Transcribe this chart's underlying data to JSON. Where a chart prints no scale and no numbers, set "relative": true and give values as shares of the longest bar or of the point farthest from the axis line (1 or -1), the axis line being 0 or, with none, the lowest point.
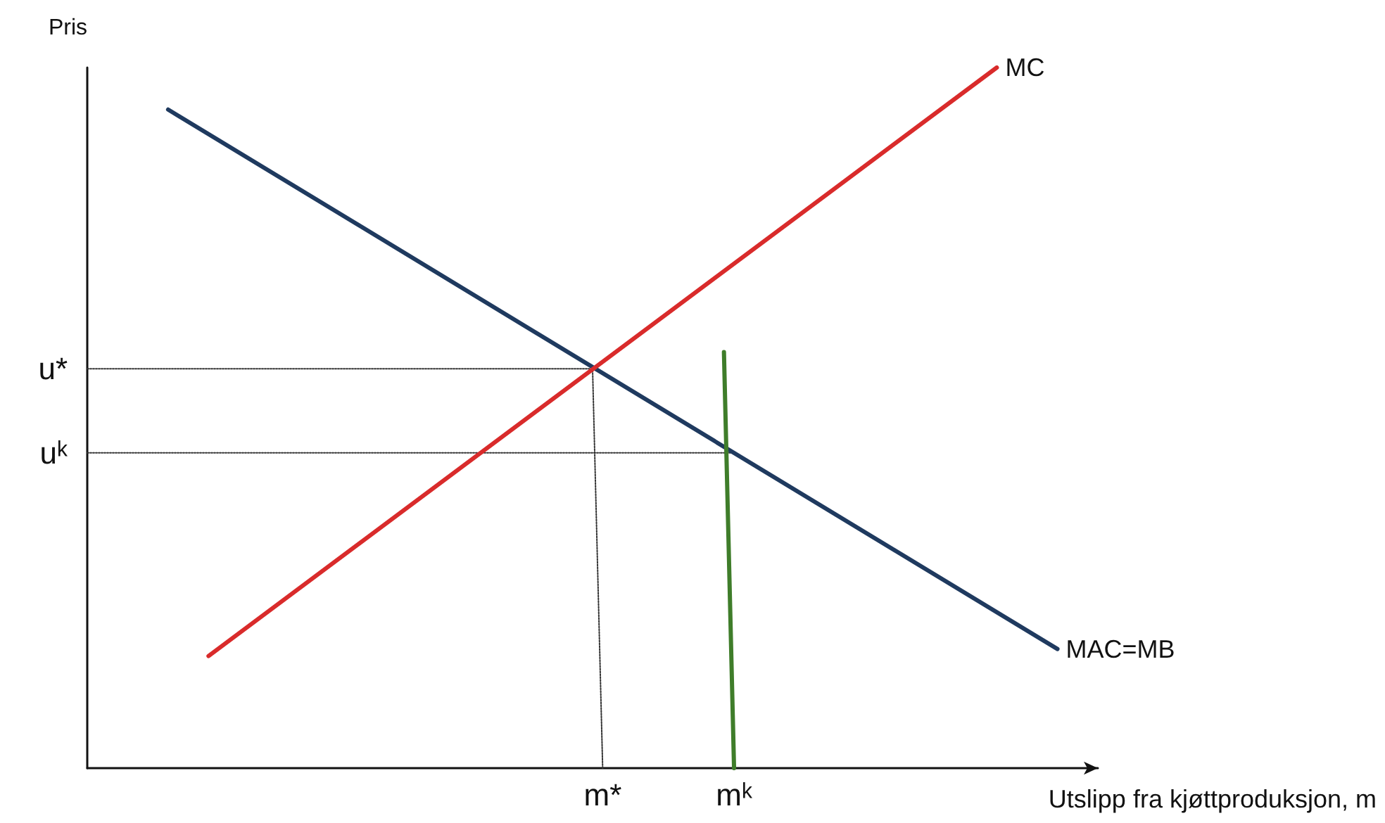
{
  "chart_data": {
    "type": "line",
    "relative": true,
    "xlabel": "Utslipp fra kjøttproduksjon, m",
    "ylabel": "Pris",
    "grid": false,
    "legend": false,
    "marker": "none",
    "categories": [
      null,
      null,
      null,
      null,
      null,
      null,
      null,
      null,
      null,
      null,
      null,
      null,
      null,
      null,
      null,
      null,
      null,
      null,
      null,
      null,
      null,
      null,
      null,
      null,
      null,
      null,
      null,
      null,
      null,
      null,
      null,
      null,
      null,
      null,
      null,
      null,
      null,
      null,
      null,
      null,
      null,
      null,
      null,
      null,
      null,
      null,
      null,
      null,
      null,
      null,
      null,
      "m*",
      null,
      null,
      null,
      null,
      null,
      null,
      null,
      null,
      null,
      null,
      null,
      null,
      "mᵏ",
      null,
      null,
      null,
      null,
      null,
      null,
      null,
      null,
      null,
      null,
      null,
      null,
      null,
      null,
      null,
      null,
      null,
      null,
      null,
      null,
      null,
      null,
      null,
      null,
      null,
      null,
      null,
      null,
      null,
      null,
      null,
      null,
      null,
      null,
      null,
      null
    ],
    "series": [
      {
        "name": "MAC=MB",
        "color": "#1f3a5f",
        "values": [
          null,
          null,
          null,
          null,
          null,
          null,
          null,
          null,
          0.94,
          null,
          null,
          null,
          null,
          null,
          null,
          null,
          null,
          null,
          null,
          null,
          null,
          null,
          null,
          null,
          null,
          null,
          null,
          null,
          null,
          null,
          null,
          null,
          null,
          null,
          null,
          null,
          null,
          null,
          null,
          null,
          null,
          null,
          null,
          null,
          null,
          null,
          null,
          null,
          null,
          null,
          null,
          null,
          null,
          null,
          null,
          null,
          null,
          null,
          null,
          null,
          null,
          null,
          null,
          null,
          null,
          null,
          null,
          null,
          null,
          null,
          null,
          null,
          null,
          null,
          null,
          null,
          null,
          null,
          null,
          null,
          null,
          null,
          null,
          null,
          null,
          null,
          null,
          null,
          null,
          null,
          null,
          null,
          null,
          null,
          null,
          null,
          0.17,
          null,
          null,
          null,
          null
        ]
      },
      {
        "name": "MC",
        "color": "#d92b2b",
        "values": [
          null,
          null,
          null,
          null,
          null,
          null,
          null,
          null,
          null,
          null,
          null,
          null,
          0.16,
          null,
          null,
          null,
          null,
          null,
          null,
          null,
          null,
          null,
          null,
          null,
          null,
          null,
          null,
          null,
          null,
          null,
          null,
          null,
          null,
          null,
          null,
          null,
          null,
          null,
          null,
          null,
          null,
          null,
          null,
          null,
          null,
          null,
          null,
          null,
          null,
          null,
          null,
          null,
          null,
          null,
          null,
          null,
          null,
          null,
          null,
          null,
          null,
          null,
          null,
          null,
          null,
          null,
          null,
          null,
          null,
          null,
          null,
          null,
          null,
          null,
          null,
          null,
          null,
          null,
          null,
          null,
          null,
          null,
          null,
          null,
          null,
          null,
          null,
          null,
          null,
          null,
          1,
          null,
          null,
          null,
          null,
          null,
          null,
          null,
          null,
          null,
          null
        ]
      },
      {
        "color": "#3f7d2a",
        "values": [
          null,
          null,
          null,
          null,
          null,
          null,
          null,
          null,
          null,
          null,
          null,
          null,
          null,
          null,
          null,
          null,
          null,
          null,
          null,
          null,
          null,
          null,
          null,
          null,
          null,
          null,
          null,
          null,
          null,
          null,
          null,
          null,
          null,
          null,
          null,
          null,
          null,
          null,
          null,
          null,
          null,
          null,
          null,
          null,
          null,
          null,
          null,
          null,
          null,
          null,
          null,
          null,
          null,
          null,
          null,
          null,
          null,
          null,
          null,
          null,
          null,
          null,
          null,
          0.594,
          0,
          null,
          null,
          null,
          null,
          null,
          null,
          null,
          null,
          null,
          null,
          null,
          null,
          null,
          null,
          null,
          null,
          null,
          null,
          null,
          null,
          null,
          null,
          null,
          null,
          null,
          null,
          null,
          null,
          null,
          null,
          null,
          null,
          null,
          null,
          null,
          null
        ]
      },
      {
        "color": "#333333",
        "line_style": "dotted",
        "values": [
          0.57,
          null,
          null,
          null,
          null,
          null,
          null,
          null,
          null,
          null,
          null,
          null,
          null,
          null,
          null,
          null,
          null,
          null,
          null,
          null,
          null,
          null,
          null,
          null,
          null,
          null,
          null,
          null,
          null,
          null,
          null,
          null,
          null,
          null,
          null,
          null,
          null,
          null,
          null,
          null,
          null,
          null,
          null,
          null,
          null,
          null,
          null,
          null,
          null,
          null,
          0.57,
          0,
          null,
          null,
          null,
          null,
          null,
          null,
          null,
          null,
          null,
          null,
          null,
          null,
          null,
          null,
          null,
          null,
          null,
          null,
          null,
          null,
          null,
          null,
          null,
          null,
          null,
          null,
          null,
          null,
          null,
          null,
          null,
          null,
          null,
          null,
          null,
          null,
          null,
          null,
          null,
          null,
          null,
          null,
          null,
          null,
          null,
          null,
          null,
          null,
          null
        ]
      },
      {
        "color": "#333333",
        "line_style": "dotted",
        "values": [
          0.45,
          null,
          null,
          null,
          null,
          null,
          null,
          null,
          null,
          null,
          null,
          null,
          null,
          null,
          null,
          null,
          null,
          null,
          null,
          null,
          null,
          null,
          null,
          null,
          null,
          null,
          null,
          null,
          null,
          null,
          null,
          null,
          null,
          null,
          null,
          null,
          null,
          null,
          null,
          null,
          null,
          null,
          null,
          null,
          null,
          null,
          null,
          null,
          null,
          null,
          null,
          null,
          null,
          null,
          null,
          null,
          null,
          null,
          null,
          null,
          null,
          null,
          null,
          null,
          0.45,
          null,
          null,
          null,
          null,
          null,
          null,
          null,
          null,
          null,
          null,
          null,
          null,
          null,
          null,
          null,
          null,
          null,
          null,
          null,
          null,
          null,
          null,
          null,
          null,
          null,
          null,
          null,
          null,
          null,
          null,
          null,
          null,
          null,
          null,
          null,
          null
        ]
      }
    ],
    "annotations": [
      "u*",
      "uᵏ"
    ]
  }
}
